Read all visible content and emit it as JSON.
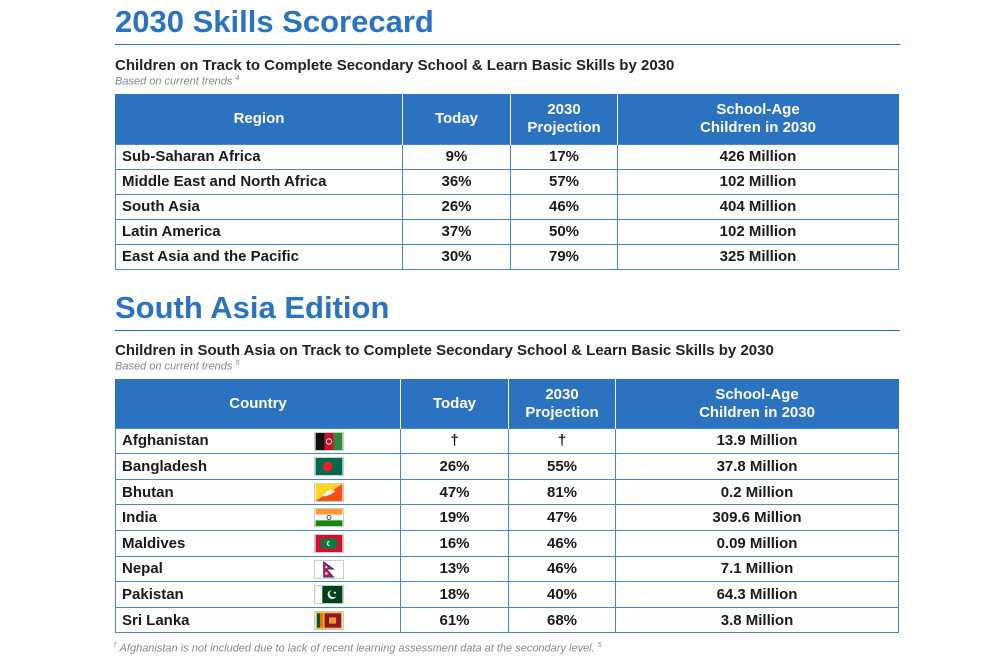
{
  "scorecard": {
    "title": "2030 Skills Scorecard",
    "subtitle": "Children on Track to Complete Secondary School & Learn Basic Skills by 2030",
    "note": "Based on current trends",
    "note_ref": "4",
    "headers": [
      "Region",
      "Today",
      "2030 Projection",
      "School-Age Children in 2030"
    ],
    "rows": [
      {
        "name": "Sub-Saharan Africa",
        "today": "9%",
        "projection": "17%",
        "children": "426 Million"
      },
      {
        "name": "Middle East and North Africa",
        "today": "36%",
        "projection": "57%",
        "children": "102 Million"
      },
      {
        "name": "South Asia",
        "today": "26%",
        "projection": "46%",
        "children": "404 Million"
      },
      {
        "name": "Latin America",
        "today": "37%",
        "projection": "50%",
        "children": "102 Million"
      },
      {
        "name": "East Asia and the Pacific",
        "today": "30%",
        "projection": "79%",
        "children": "325 Million"
      }
    ]
  },
  "south_asia": {
    "title": "South Asia Edition",
    "subtitle": "Children in South Asia on Track to Complete Secondary School & Learn Basic Skills by 2030",
    "note": "Based on current trends",
    "note_ref": "5",
    "headers": [
      "Country",
      "Today",
      "2030 Projection",
      "School-Age Children in 2030"
    ],
    "rows": [
      {
        "name": "Afghanistan",
        "flag": "afghanistan-flag-icon",
        "today": "†",
        "projection": "†",
        "children": "13.9 Million"
      },
      {
        "name": "Bangladesh",
        "flag": "bangladesh-flag-icon",
        "today": "26%",
        "projection": "55%",
        "children": "37.8 Million"
      },
      {
        "name": "Bhutan",
        "flag": "bhutan-flag-icon",
        "today": "47%",
        "projection": "81%",
        "children": "0.2 Million"
      },
      {
        "name": "India",
        "flag": "india-flag-icon",
        "today": "19%",
        "projection": "47%",
        "children": "309.6 Million"
      },
      {
        "name": "Maldives",
        "flag": "maldives-flag-icon",
        "today": "16%",
        "projection": "46%",
        "children": "0.09 Million"
      },
      {
        "name": "Nepal",
        "flag": "nepal-flag-icon",
        "today": "13%",
        "projection": "46%",
        "children": "7.1 Million"
      },
      {
        "name": "Pakistan",
        "flag": "pakistan-flag-icon",
        "today": "18%",
        "projection": "40%",
        "children": "64.3 Million"
      },
      {
        "name": "Sri Lanka",
        "flag": "sri-lanka-flag-icon",
        "today": "61%",
        "projection": "68%",
        "children": "3.8 Million"
      }
    ]
  },
  "footnote": {
    "mark": "†",
    "text": "Afghanistan is not included due to lack of recent learning assessment data at the secondary level.",
    "ref": "5"
  },
  "colors": {
    "accent": "#2a73c1",
    "header_bg": "#2b73c0"
  }
}
